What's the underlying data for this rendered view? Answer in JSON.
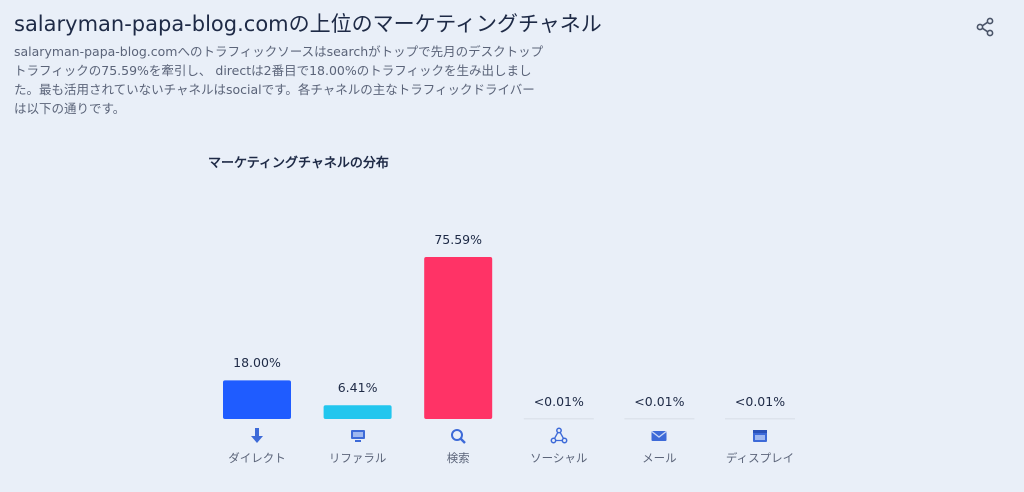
{
  "header": {
    "title": "salaryman-papa-blog.comの上位のマーケティングチャネル",
    "description": "salaryman-papa-blog.comへのトラフィックソースはsearchがトップで先月のデスクトップトラフィックの75.59%を牽引し、 directは2番目で18.00%のトラフィックを生み出しました。最も活用されていないチャネルはsocialです。各チャネルの主なトラフィックドライバーは以下の通りです。",
    "share_icon": "share-icon"
  },
  "chart_data": {
    "type": "bar",
    "title": "マーケティングチャネルの分布",
    "categories": [
      "ダイレクト",
      "リファラル",
      "検索",
      "ソーシャル",
      "メール",
      "ディスプレイ"
    ],
    "values": [
      18.0,
      6.41,
      75.59,
      0.01,
      0.01,
      0.01
    ],
    "value_labels": [
      "18.00%",
      "6.41%",
      "75.59%",
      "<0.01%",
      "<0.01%",
      "<0.01%"
    ],
    "colors": [
      "#1f5cff",
      "#22c6ee",
      "#ff3366",
      "#dde3ec",
      "#dde3ec",
      "#dde3ec"
    ],
    "icons": [
      "direct-arrow-icon",
      "referral-monitor-icon",
      "search-magnifier-icon",
      "social-network-icon",
      "mail-envelope-icon",
      "display-window-icon"
    ],
    "ylim": [
      0,
      75.59
    ],
    "grid": false,
    "legend": "none"
  }
}
